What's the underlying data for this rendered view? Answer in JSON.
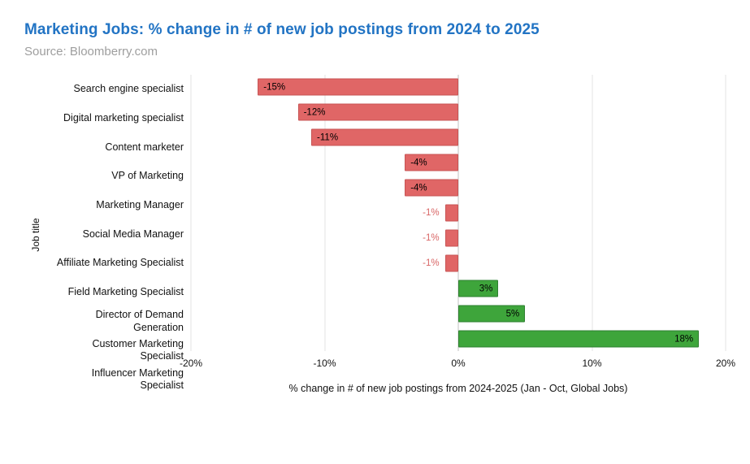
{
  "header": {
    "title": "Marketing Jobs: % change in # of new job postings from 2024 to 2025",
    "source": "Source: Bloomberry.com"
  },
  "colors": {
    "title_blue": "#2274c4",
    "subtitle_gray": "#9e9e9e",
    "negative_bar_fill": "#e06666",
    "negative_bar_border": "#c75454",
    "positive_bar_fill": "#3ea53b",
    "positive_bar_border": "#2e8030",
    "outside_value_label": "#d96666",
    "gridline": "#e3e3e3",
    "zero_line": "#c2c2c2"
  },
  "chart_data": {
    "type": "bar",
    "orientation": "horizontal",
    "title": "Marketing Jobs: % change in # of new job postings from 2024 to 2025",
    "subtitle": "Source: Bloomberry.com",
    "categories": [
      "Search engine specialist",
      "Digital marketing specialist",
      "Content marketer",
      "VP of Marketing",
      "Marketing Manager",
      "Social Media Manager",
      "Affiliate Marketing Specialist",
      "Field Marketing Specialist",
      "Director of Demand\nGeneration",
      "Customer Marketing Specialist",
      "Influencer Marketing Specialist"
    ],
    "values": [
      -15,
      -12,
      -11,
      -4,
      -4,
      -1,
      -1,
      -1,
      3,
      5,
      18
    ],
    "value_labels": [
      "-15%",
      "-12%",
      "-11%",
      "-4%",
      "-4%",
      "-1%",
      "-1%",
      "-1%",
      "3%",
      "5%",
      "18%"
    ],
    "xlabel": "% change in # of new job postings from 2024-2025 (Jan - Oct, Global Jobs)",
    "ylabel": "Job title",
    "xlim": [
      -20,
      20
    ],
    "x_ticks": [
      {
        "value": -20,
        "label": "-20%"
      },
      {
        "value": -10,
        "label": "-10%"
      },
      {
        "value": 0,
        "label": "0%"
      },
      {
        "value": 10,
        "label": "10%"
      },
      {
        "value": 20,
        "label": "20%"
      }
    ],
    "grid": true,
    "legend": "none",
    "outside_label_threshold": 2
  }
}
